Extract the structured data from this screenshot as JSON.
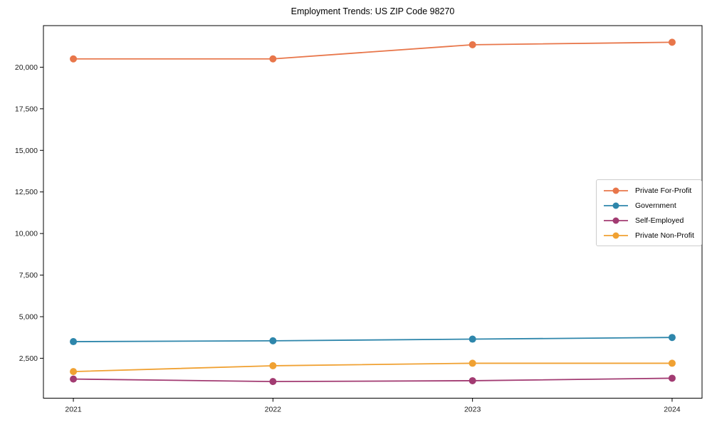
{
  "chart_data": {
    "type": "line",
    "title": "Employment Trends: US ZIP Code 98270",
    "xlabel": "",
    "ylabel": "",
    "x": [
      2021,
      2022,
      2023,
      2024
    ],
    "x_tick_labels": [
      "2021",
      "2022",
      "2023",
      "2024"
    ],
    "series": [
      {
        "name": "Private For-Profit",
        "color": "#E8764A",
        "values": [
          20500,
          20500,
          21350,
          21500
        ]
      },
      {
        "name": "Government",
        "color": "#2E86AB",
        "values": [
          3500,
          3550,
          3650,
          3750
        ]
      },
      {
        "name": "Self-Employed",
        "color": "#A23B72",
        "values": [
          1250,
          1100,
          1150,
          1300
        ]
      },
      {
        "name": "Private Non-Profit",
        "color": "#F0A132",
        "values": [
          1700,
          2050,
          2200,
          2200
        ]
      }
    ],
    "yticks": [
      2500,
      5000,
      7500,
      10000,
      12500,
      15000,
      17500,
      20000
    ],
    "ylim": [
      100,
      22500
    ],
    "xlim": [
      2020.85,
      2024.15
    ],
    "grid": false,
    "legend_position": "center-right",
    "marker": "circle",
    "axis_color": "#000000",
    "tick_label_color": "#1a1a1a"
  }
}
